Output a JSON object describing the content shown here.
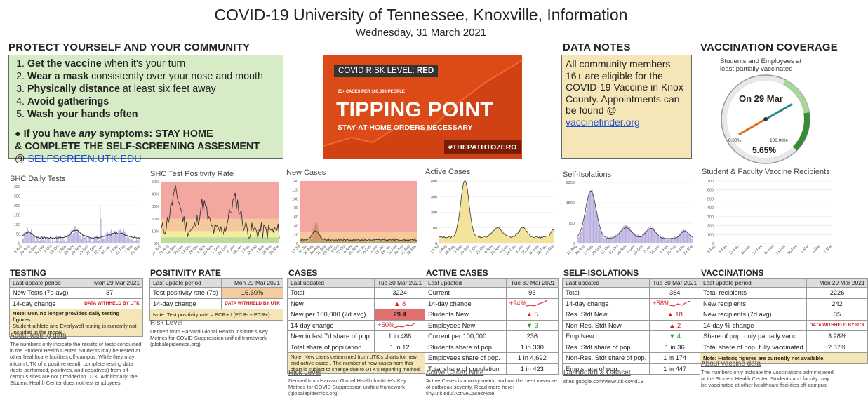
{
  "header": {
    "title": "COVID-19 University of Tennessee, Knoxville, Information",
    "date": "Wednesday, 31 March 2021"
  },
  "protect": {
    "heading": "PROTECT YOURSELF AND YOUR COMMUNITY",
    "items": [
      {
        "bold": "Get the vaccine",
        "rest": " when it's your turn"
      },
      {
        "bold": "Wear a mask",
        "rest": " consistently over your nose and mouth"
      },
      {
        "bold": "Physically distance",
        "rest": " at least six feet away"
      },
      {
        "bold": "Avoid gatherings",
        "rest": ""
      },
      {
        "bold": "Wash your hands often",
        "rest": ""
      }
    ],
    "symptom_pre": "● If you have ",
    "symptom_em": "any",
    "symptom_post": " symptoms: STAY HOME",
    "screen_line": "& COMPLETE THE SELF-SCREENING ASSESMENT",
    "at": "@ ",
    "link": "SELFSCREEN.UTK.EDU"
  },
  "risk": {
    "level_label": "COVID RISK LEVEL: ",
    "level": "RED",
    "threshold": "25+ CASES PER 100,000 PEOPLE",
    "headline": "TIPPING POINT",
    "sub": "STAY-AT-HOME ORDERS NECESSARY",
    "hashtag": "#THEPATHTOZERO"
  },
  "notes": {
    "heading": "DATA NOTES",
    "text": "All community members 16+ are eligible for the COVID-19 Vaccine in Knox County. Appointments can be found @ ",
    "link": "vaccinefinder.org"
  },
  "vaccine": {
    "heading": "VACCINATION COVERAGE",
    "caption": "Students and Employees at least partially vaccinated",
    "gauge_date": "On 29 Mar",
    "min": "0.00%",
    "max": "100.00%",
    "value": "5.65%",
    "value_num": 5.65
  },
  "charts": {
    "tests": {
      "title": "SHC Daily Tests",
      "yticks": [
        "300",
        "250",
        "200",
        "150",
        "100",
        "50",
        "0"
      ],
      "xticks": [
        "9 Aug",
        "23 Aug",
        "6 Sep",
        "20 Sep",
        "4 Oct",
        "18 Oct",
        "1 Nov",
        "15 Nov",
        "29 Nov",
        "13 Dec",
        "27 Dec",
        "10 Jan",
        "24 Jan",
        "7 Feb",
        "21 Feb",
        "7 Mar",
        "21 Mar"
      ]
    },
    "positivity": {
      "title": "SHC Test Positivity Rate",
      "yticks": [
        "50%",
        "40%",
        "30%",
        "20%",
        "10%",
        "0%"
      ],
      "xticks": [
        "17 Aug",
        "31 Aug",
        "14 Sep",
        "28 Sep",
        "12 Oct",
        "26 Oct",
        "9 Nov",
        "23 Nov",
        "7 Dec",
        "21 Dec",
        "4 Jan",
        "18 Jan",
        "1 Feb",
        "15 Feb",
        "1 Mar",
        "15 Mar",
        "29 Mar"
      ]
    },
    "newcases": {
      "title": "New Cases",
      "yticks": [
        "140",
        "120",
        "100",
        "80",
        "60",
        "40",
        "20",
        "0"
      ],
      "xticks": [
        "17 Jul",
        "31 Jul",
        "14 Aug",
        "28 Aug",
        "11 Sep",
        "25 Sep",
        "9 Oct",
        "23 Oct",
        "6 Nov",
        "20 Nov",
        "4 Dec",
        "18 Dec",
        "1 Jan",
        "15 Jan",
        "29 Jan",
        "12 Feb",
        "26 Feb",
        "12 Mar",
        "26 Mar"
      ]
    },
    "active": {
      "title": "Active Cases",
      "yticks": [
        "400",
        "300",
        "200",
        "100",
        "0"
      ],
      "xticks": [
        "17 Jul",
        "2 Aug",
        "18 Aug",
        "3 Sep",
        "19 Sep",
        "5 Oct",
        "21 Oct",
        "6 Nov",
        "22 Nov",
        "8 Dec",
        "24 Dec",
        "9 Jan",
        "25 Jan",
        "10 Feb",
        "26 Feb",
        "14 Mar"
      ]
    },
    "iso": {
      "title": "Self-Isolations",
      "yticks": [
        "2250",
        "1500",
        "750",
        "0"
      ],
      "xticks": [
        "12 Aug",
        "28 Aug",
        "13 Sep",
        "29 Sep",
        "15 Oct",
        "31 Oct",
        "16 Nov",
        "2 Dec",
        "18 Dec",
        "3 Jan",
        "19 Jan",
        "4 Feb",
        "20 Feb",
        "8 Mar",
        "24 Mar"
      ]
    },
    "vacc": {
      "title": "Student & Faculty Vaccine Recipients",
      "yticks": [
        "700",
        "600",
        "500",
        "400",
        "300",
        "200",
        "100",
        "0"
      ],
      "xticks": [
        "5 Feb",
        "8 Feb",
        "11 Feb",
        "14 Feb",
        "17 Feb",
        "20 Feb",
        "23 Feb",
        "26 Feb",
        "1 Mar",
        "4 Mar",
        "7 Mar"
      ]
    }
  },
  "testing": {
    "heading": "TESTING",
    "hdr_l": "Last update period",
    "hdr_r": "Mon 29 Mar 2021",
    "r1_l": "New Tests (7d avg)",
    "r1_v": "37",
    "r2_l": "14-day change",
    "r2_v": "DATA WITHHELD BY UTK",
    "note1": "Note: UTK no longer provides daily testing figures.",
    "note2": "Student-athlete and Everlywell testing is currently not included in the model.",
    "about": "About testing data",
    "desc": "The numbers only indicate the results of tests conducted in the Student Health Center. Students may be tested at other healthcare facilities off-campus. While they may inform UTK of a positive result, complete testing data (tests performed, positives, and negatives) from off-campus sites are not provided to UTK. Additionally, the Student Health Center does not test employees."
  },
  "positivity": {
    "heading": "POSITIVITY RATE",
    "hdr_l": "Last update period",
    "hdr_r": "Mon 29 Mar 2021",
    "r1_l": "Test positivity rate (7d)",
    "r1_v": "16.60%",
    "r2_l": "14-day change",
    "r2_v": "DATA WITHHELD BY UTK",
    "note": "Note: Test positivity rate = PCR+ / (PCR- + PCR+)",
    "link": "Risk Level",
    "desc": "Derived from Harvard Global Health Institute's Key Metrics for COVID Suppression unified framework (globalepidemics.org)"
  },
  "cases": {
    "heading": "CASES",
    "hdr_l": "Last updated",
    "hdr_r": "Tue 30 Mar 2021",
    "rows": [
      {
        "l": "Total",
        "v": "3224"
      },
      {
        "l": "New",
        "v": "▲ 8"
      },
      {
        "l": "New per 100,000 (7d avg)",
        "v": "29.4"
      },
      {
        "l": "14-day change",
        "v": "+50%"
      },
      {
        "l": "New in last 7d share of pop.",
        "v": "1 in 486"
      },
      {
        "l": "Total share of population",
        "v": "1 in 12"
      }
    ],
    "note": "Note: New cases determined from UTK's charts for new and active cases . The number of new cases from this chart is subject to change due to UTK's reporting method.",
    "link": "Risk Level",
    "desc": "Derived from Harvard Global Health Institute's Key Metrics for COVID Suppression unified framework (globalepidemics.org)"
  },
  "activecases": {
    "heading": "ACTIVE CASES",
    "hdr_l": "Last updated",
    "hdr_r": "Tue 30 Mar 2021",
    "rows": [
      {
        "l": "Current",
        "v": "93"
      },
      {
        "l": "14-day change",
        "v": "+94%"
      },
      {
        "l": "Students New",
        "v": "▲ 5"
      },
      {
        "l": "Employees New",
        "v": "▼ 3"
      },
      {
        "l": "Current per 100,000",
        "v": "236"
      },
      {
        "l": "Students share of pop.",
        "v": "1 in 330"
      },
      {
        "l": "Employees share of pop.",
        "v": "1 in 4,692"
      },
      {
        "l": "Total share of population",
        "v": "1 in 423"
      }
    ],
    "link": "Active Cases Note",
    "desc": "Active Cases is a noisy metric and not the best measure of outbreak severity. Read more here: tiny.utk.edu/ActiveCasesNote"
  },
  "selfiso": {
    "heading": "SELF-ISOLATIONS",
    "hdr_l": "Last updated",
    "hdr_r": "Tue 30 Mar 2021",
    "rows": [
      {
        "l": "Total",
        "v": "364"
      },
      {
        "l": "14-day change",
        "v": "+58%"
      },
      {
        "l": "Res. Stdt New",
        "v": "▲ 18"
      },
      {
        "l": "Non-Res. Stdt New",
        "v": "▲ 2"
      },
      {
        "l": "Emp New",
        "v": "▼ 4"
      },
      {
        "l": "Res. Stdt share of pop.",
        "v": "1 in 36"
      },
      {
        "l": "Non-Res. Stdt share of pop.",
        "v": "1 in 174"
      },
      {
        "l": "Emp share of pop.",
        "v": "1 in 447"
      }
    ],
    "link": "Dashboard & Dataset",
    "desc": "sites.google.com/view/utk-covid19"
  },
  "vaccinations": {
    "heading": "VACCINATIONS",
    "hdr_l": "Last update period",
    "hdr_r": "Mon 29 Mar 2021",
    "rows": [
      {
        "l": "Total recipients",
        "v": "2226"
      },
      {
        "l": "New recipients",
        "v": "242"
      },
      {
        "l": "New recipients (7d avg)",
        "v": "35"
      },
      {
        "l": "14-day % change",
        "v": "DATA WITHHELD BY UTK"
      },
      {
        "l": "Share of pop. only partially vacc.",
        "v": "3.28%"
      },
      {
        "l": "Total share of pop. fully vaccinated",
        "v": "2.37%"
      }
    ],
    "note": "Note: Historic figures are currently not available.",
    "link": "About vaccine data",
    "desc": "The numbers only indicate the vaccinations administered at the Student Health Center. Students and faculty may be vaccinated at other healthcare facilities off-campus."
  },
  "colors": {
    "risk_bg": "#db4a17",
    "protect_bg": "#d6ecc7",
    "note_bg": "#f5e6b8",
    "bar": "#b3a5dc",
    "area": "#f3e39a",
    "line": "#333333"
  }
}
